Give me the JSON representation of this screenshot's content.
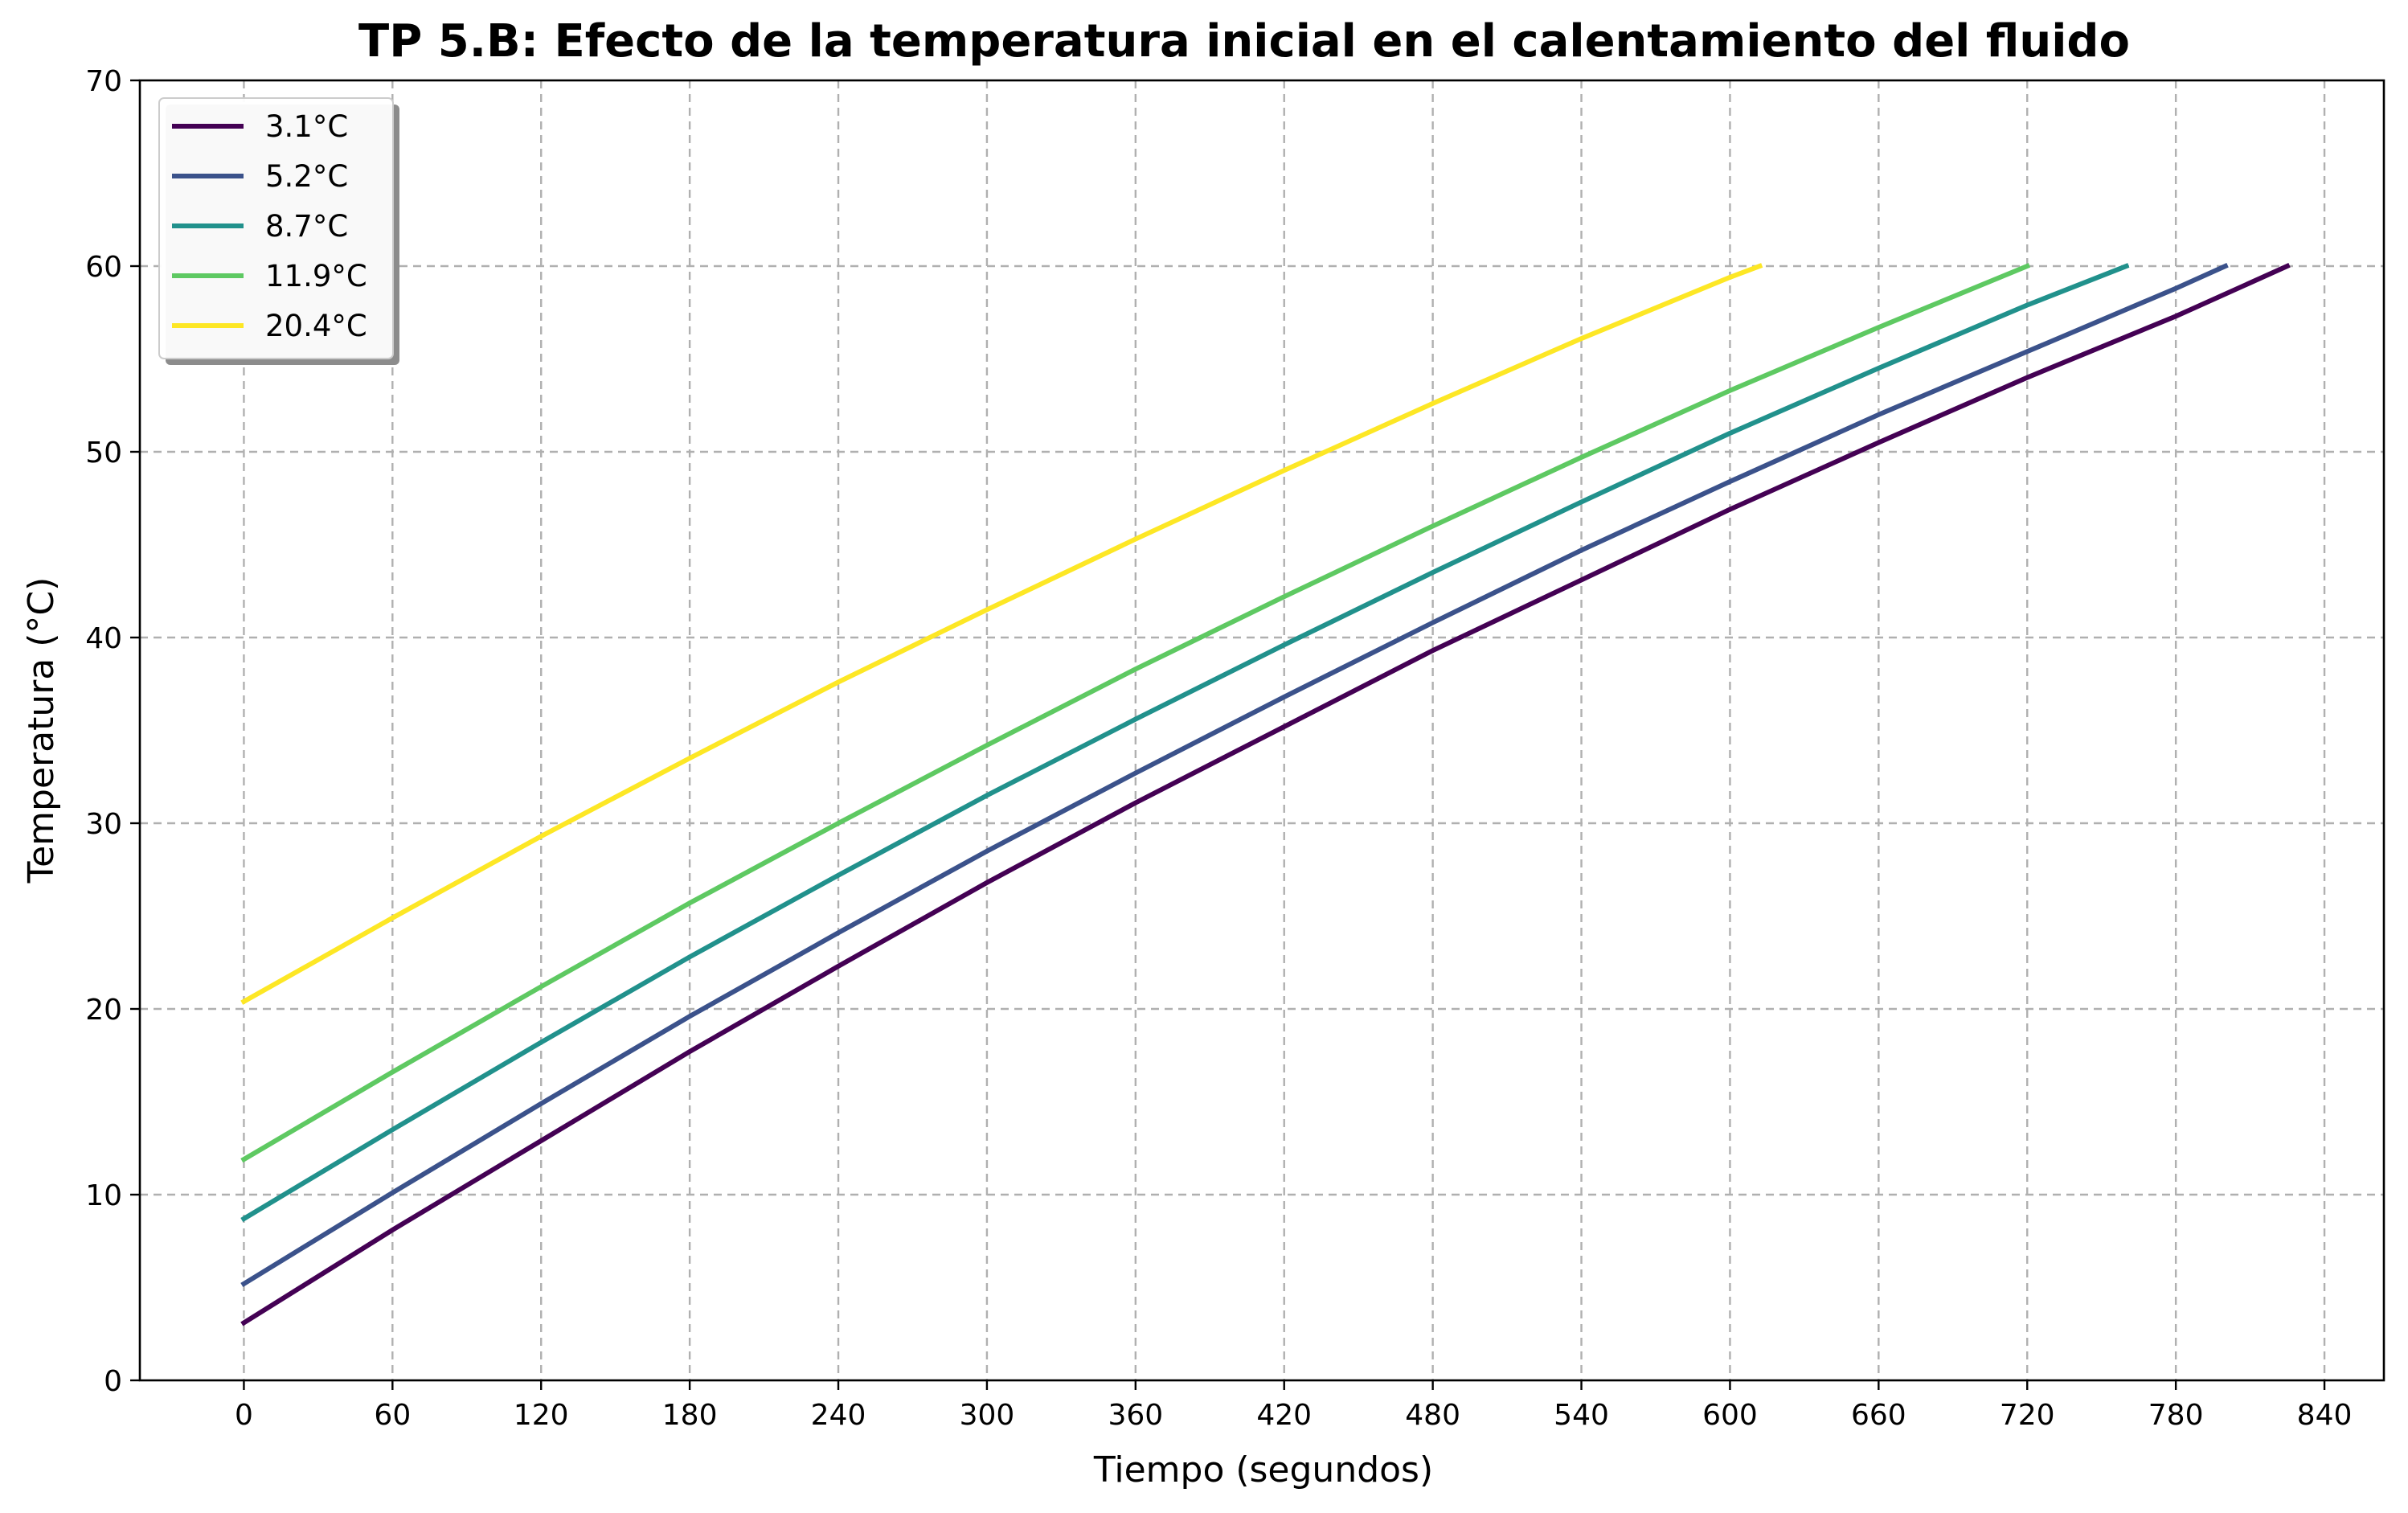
{
  "chart_data": {
    "type": "line",
    "title": "TP 5.B: Efecto de la temperatura inicial en el calentamiento del fluido",
    "xlabel": "Tiempo (segundos)",
    "ylabel": "Temperatura (°C)",
    "xlim": [
      -42,
      864
    ],
    "ylim": [
      0,
      70
    ],
    "xticks": [
      0,
      60,
      120,
      180,
      240,
      300,
      360,
      420,
      480,
      540,
      600,
      660,
      720,
      780,
      840
    ],
    "yticks": [
      0,
      10,
      20,
      30,
      40,
      50,
      60,
      70
    ],
    "xtick_labels": [
      "0",
      "60",
      "120",
      "180",
      "240",
      "300",
      "360",
      "420",
      "480",
      "540",
      "600",
      "660",
      "720",
      "780",
      "840"
    ],
    "ytick_labels": [
      "0",
      "10",
      "20",
      "30",
      "40",
      "50",
      "60",
      "70"
    ],
    "grid": true,
    "legend_position": "top-left",
    "series": [
      {
        "name": "3.1°C",
        "color": "#440154",
        "x": [
          0,
          60,
          120,
          180,
          240,
          300,
          360,
          420,
          480,
          540,
          600,
          660,
          720,
          780,
          825
        ],
        "y": [
          3.1,
          8.1,
          12.9,
          17.7,
          22.3,
          26.8,
          31.1,
          35.2,
          39.3,
          43.1,
          46.9,
          50.5,
          54.0,
          57.3,
          60.0
        ]
      },
      {
        "name": "5.2°C",
        "color": "#3b528b",
        "x": [
          0,
          60,
          120,
          180,
          240,
          300,
          360,
          420,
          480,
          540,
          600,
          660,
          720,
          780,
          800
        ],
        "y": [
          5.2,
          10.1,
          14.9,
          19.6,
          24.1,
          28.5,
          32.7,
          36.8,
          40.8,
          44.7,
          48.4,
          52.0,
          55.4,
          58.8,
          60.0
        ]
      },
      {
        "name": "8.7°C",
        "color": "#21918c",
        "x": [
          0,
          60,
          120,
          180,
          240,
          300,
          360,
          420,
          480,
          540,
          600,
          660,
          720,
          760
        ],
        "y": [
          8.7,
          13.5,
          18.2,
          22.8,
          27.2,
          31.5,
          35.6,
          39.6,
          43.5,
          47.3,
          51.0,
          54.5,
          57.9,
          60.0
        ]
      },
      {
        "name": "11.9°C",
        "color": "#5ec962",
        "x": [
          0,
          60,
          120,
          180,
          240,
          300,
          360,
          420,
          480,
          540,
          600,
          660,
          720
        ],
        "y": [
          11.9,
          16.6,
          21.2,
          25.7,
          30.0,
          34.2,
          38.3,
          42.2,
          46.0,
          49.7,
          53.3,
          56.7,
          60.0
        ]
      },
      {
        "name": "20.4°C",
        "color": "#fde725",
        "x": [
          0,
          60,
          120,
          180,
          240,
          300,
          360,
          420,
          480,
          540,
          600,
          612
        ],
        "y": [
          20.4,
          24.9,
          29.3,
          33.5,
          37.6,
          41.5,
          45.3,
          49.0,
          52.6,
          56.1,
          59.4,
          60.0
        ]
      }
    ]
  }
}
